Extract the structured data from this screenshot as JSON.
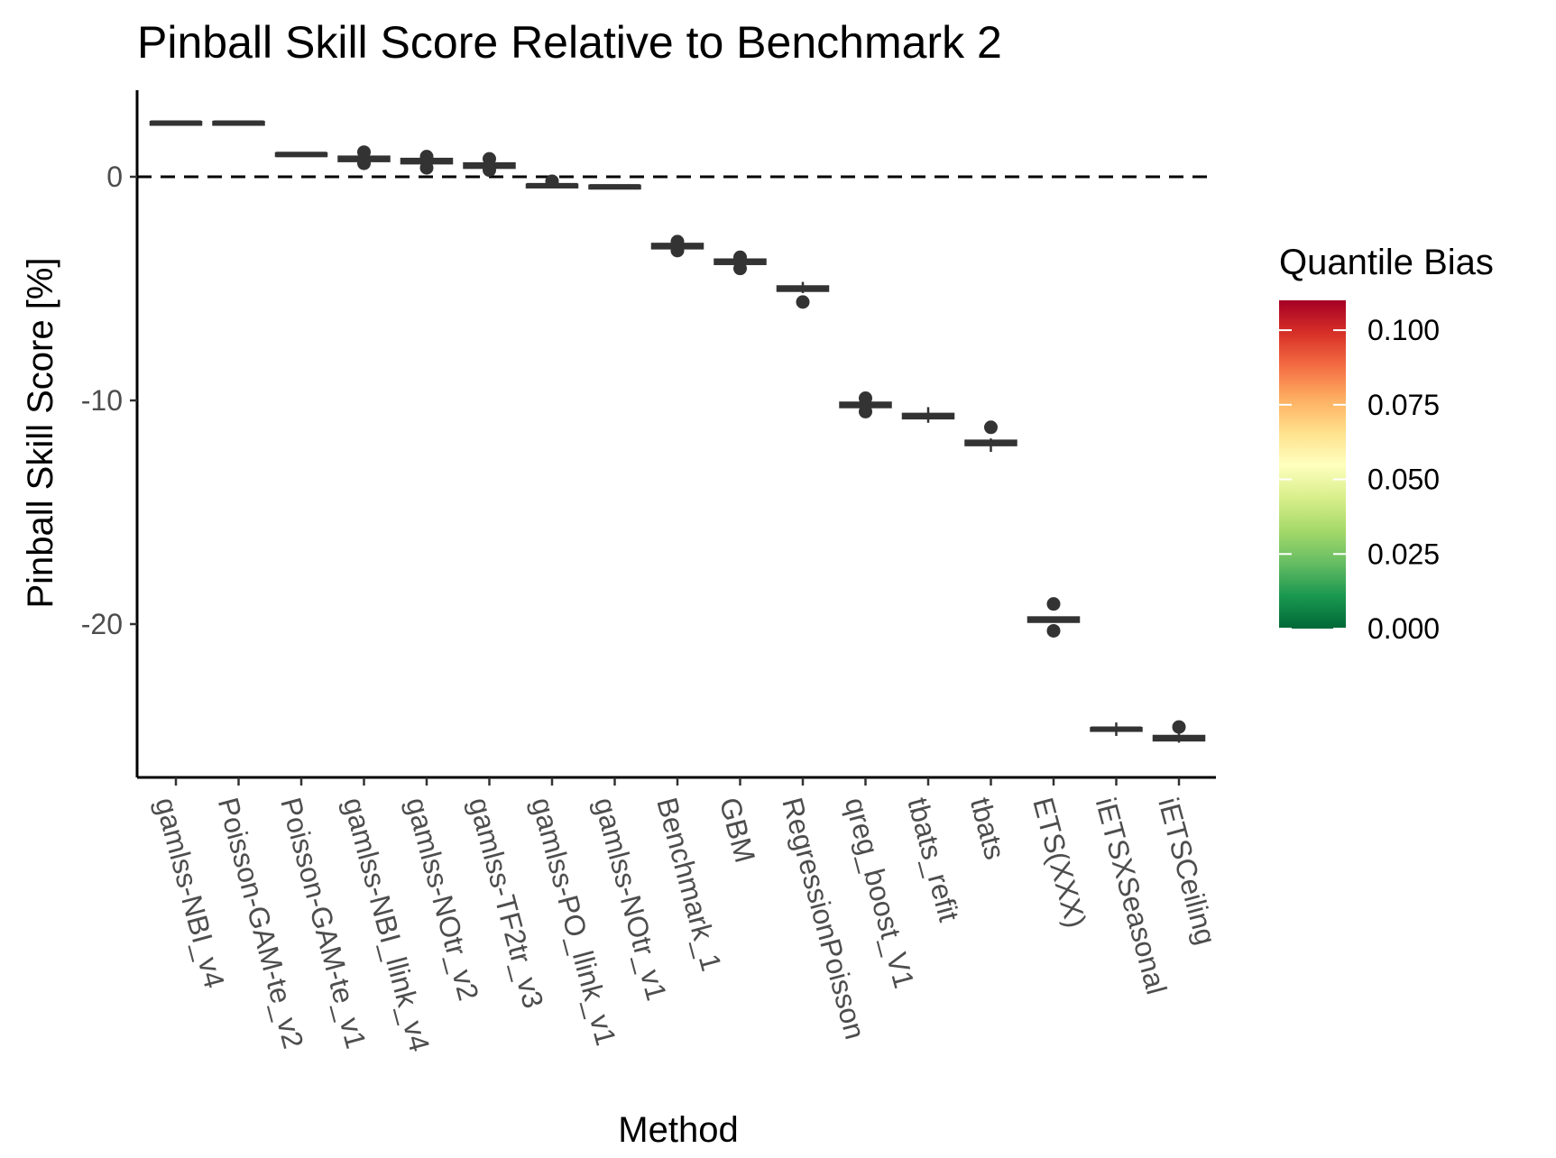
{
  "chart_data": {
    "type": "boxplot",
    "title": "Pinball Skill Score Relative to Benchmark 2",
    "xlabel": "Method",
    "ylabel": "Pinball Skill Score [%]",
    "ylim": [
      -27,
      4
    ],
    "y_ticks": [
      0,
      -10,
      -20
    ],
    "reference_line": 0,
    "legend": {
      "title": "Quantile Bias",
      "range": [
        0,
        0.11
      ],
      "ticks": [
        "0.100",
        "0.075",
        "0.050",
        "0.025",
        "0.000"
      ],
      "tick_values": [
        0.1,
        0.075,
        0.05,
        0.025,
        0.0
      ],
      "colors": [
        "#006837",
        "#1a9850",
        "#66bd63",
        "#a6d96a",
        "#d9ef8b",
        "#ffffbf",
        "#fee08b",
        "#fdae61",
        "#f46d43",
        "#d73027",
        "#a50026"
      ],
      "placement": "right"
    },
    "categories": [
      "gamlss-NBI_v4",
      "Poisson-GAM-te_v2",
      "Poisson-GAM-te_v1",
      "gamlss-NBI_llink_v4",
      "gamlss-NOtr_v2",
      "gamlss-TF2tr_v3",
      "gamlss-PO_llink_v1",
      "gamlss-NOtr_v1",
      "Benchmark_1",
      "GBM",
      "RegressionPoisson",
      "qreg_boost_V1",
      "tbats_refit",
      "tbats",
      "ETS(XXX)",
      "iETSXSeasonal",
      "iETSCeiling"
    ],
    "boxes": [
      {
        "method": "gamlss-NBI_v4",
        "median": 2.4,
        "q1": 2.35,
        "q3": 2.45,
        "whisker_low": 2.35,
        "whisker_high": 2.45,
        "outliers": []
      },
      {
        "method": "Poisson-GAM-te_v2",
        "median": 2.4,
        "q1": 2.35,
        "q3": 2.45,
        "whisker_low": 2.35,
        "whisker_high": 2.45,
        "outliers": []
      },
      {
        "method": "Poisson-GAM-te_v1",
        "median": 1.0,
        "q1": 0.95,
        "q3": 1.05,
        "whisker_low": 0.95,
        "whisker_high": 1.05,
        "outliers": []
      },
      {
        "method": "gamlss-NBI_llink_v4",
        "median": 0.8,
        "q1": 0.7,
        "q3": 0.9,
        "whisker_low": 0.7,
        "whisker_high": 0.9,
        "outliers": [
          1.1,
          0.6
        ]
      },
      {
        "method": "gamlss-NOtr_v2",
        "median": 0.7,
        "q1": 0.6,
        "q3": 0.8,
        "whisker_low": 0.6,
        "whisker_high": 0.8,
        "outliers": [
          0.9,
          0.4
        ]
      },
      {
        "method": "gamlss-TF2tr_v3",
        "median": 0.5,
        "q1": 0.4,
        "q3": 0.6,
        "whisker_low": 0.4,
        "whisker_high": 0.6,
        "outliers": [
          0.8,
          0.3
        ]
      },
      {
        "method": "gamlss-PO_llink_v1",
        "median": -0.4,
        "q1": -0.45,
        "q3": -0.35,
        "whisker_low": -0.45,
        "whisker_high": -0.35,
        "outliers": [
          -0.2
        ]
      },
      {
        "method": "gamlss-NOtr_v1",
        "median": -0.45,
        "q1": -0.5,
        "q3": -0.4,
        "whisker_low": -0.5,
        "whisker_high": -0.4,
        "outliers": []
      },
      {
        "method": "Benchmark_1",
        "median": -3.1,
        "q1": -3.2,
        "q3": -3.0,
        "whisker_low": -3.2,
        "whisker_high": -3.0,
        "outliers": [
          -2.9,
          -3.3
        ]
      },
      {
        "method": "GBM",
        "median": -3.8,
        "q1": -3.9,
        "q3": -3.7,
        "whisker_low": -3.9,
        "whisker_high": -3.7,
        "outliers": [
          -3.6,
          -4.1
        ]
      },
      {
        "method": "RegressionPoisson",
        "median": -5.0,
        "q1": -5.1,
        "q3": -4.9,
        "whisker_low": -5.2,
        "whisker_high": -4.7,
        "outliers": [
          -5.6
        ]
      },
      {
        "method": "qreg_boost_V1",
        "median": -10.2,
        "q1": -10.3,
        "q3": -10.1,
        "whisker_low": -10.3,
        "whisker_high": -10.1,
        "outliers": [
          -9.9,
          -10.5
        ]
      },
      {
        "method": "tbats_refit",
        "median": -10.7,
        "q1": -10.8,
        "q3": -10.6,
        "whisker_low": -11.0,
        "whisker_high": -10.3,
        "outliers": []
      },
      {
        "method": "tbats",
        "median": -11.9,
        "q1": -12.0,
        "q3": -11.8,
        "whisker_low": -12.3,
        "whisker_high": -11.7,
        "outliers": [
          -11.2
        ]
      },
      {
        "method": "ETS(XXX)",
        "median": -19.8,
        "q1": -19.9,
        "q3": -19.7,
        "whisker_low": -19.9,
        "whisker_high": -19.7,
        "outliers": [
          -19.1,
          -20.3
        ]
      },
      {
        "method": "iETSXSeasonal",
        "median": -24.7,
        "q1": -24.75,
        "q3": -24.65,
        "whisker_low": -25.0,
        "whisker_high": -24.4,
        "outliers": []
      },
      {
        "method": "iETSCeiling",
        "median": -25.1,
        "q1": -25.2,
        "q3": -25.0,
        "whisker_low": -25.3,
        "whisker_high": -24.9,
        "outliers": [
          -24.6
        ]
      }
    ]
  }
}
